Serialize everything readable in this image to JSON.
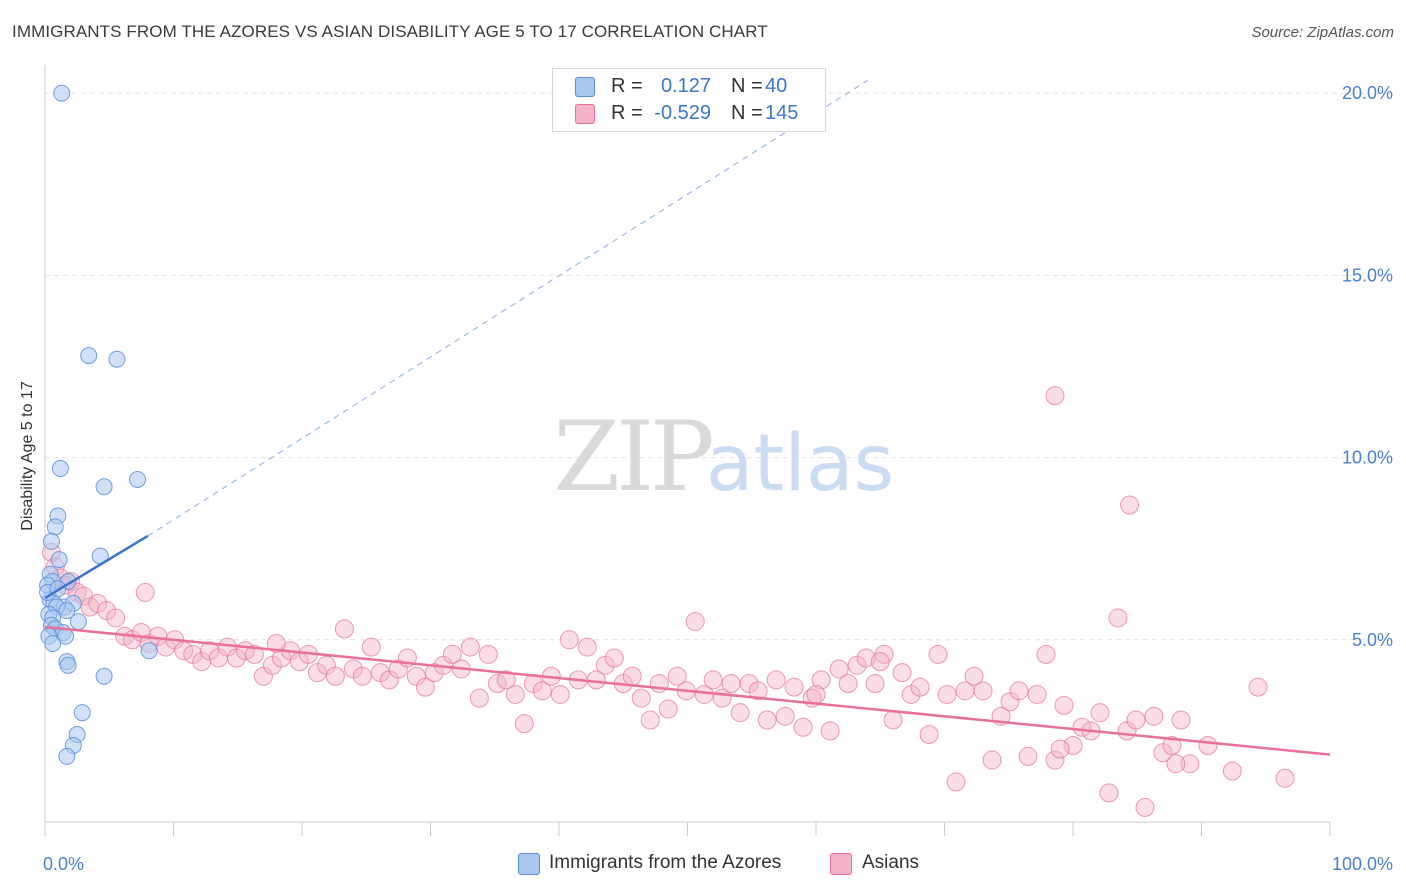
{
  "title": "IMMIGRANTS FROM THE AZORES VS ASIAN DISABILITY AGE 5 TO 17 CORRELATION CHART",
  "source": "Source: ZipAtlas.com",
  "watermark": {
    "zip": "ZIP",
    "atlas": "atlas"
  },
  "legend": {
    "series1": {
      "r_label": "R =",
      "r_value": "0.127",
      "n_label": "N =",
      "n_value": "40",
      "color": "#a9c8f0"
    },
    "series2": {
      "r_label": "R =",
      "r_value": "-0.529",
      "n_label": "N =",
      "n_value": "145",
      "color": "#f5b3c8"
    }
  },
  "bottom_legend": {
    "series1": "Immigrants from the Azores",
    "series2": "Asians"
  },
  "chart_data": {
    "type": "scatter",
    "title": "IMMIGRANTS FROM THE AZORES VS ASIAN DISABILITY AGE 5 TO 17 CORRELATION CHART",
    "xlabel": "",
    "ylabel": "Disability Age 5 to 17",
    "xlim": [
      0,
      100
    ],
    "ylim": [
      0,
      20.5
    ],
    "x_tick_labels": [
      "0.0%",
      "100.0%"
    ],
    "y_ticks": [
      5,
      10,
      15,
      20
    ],
    "y_tick_labels": [
      "5.0%",
      "10.0%",
      "15.0%",
      "20.0%"
    ],
    "grid": true,
    "series": [
      {
        "name": "Immigrants from the Azores",
        "color": "#5b8fd9",
        "fill": "#a9c8f0",
        "points": [
          [
            1.3,
            20.0
          ],
          [
            3.4,
            12.8
          ],
          [
            5.6,
            12.7
          ],
          [
            1.2,
            9.7
          ],
          [
            4.6,
            9.2
          ],
          [
            7.2,
            9.4
          ],
          [
            1.0,
            8.4
          ],
          [
            0.8,
            8.1
          ],
          [
            0.5,
            7.7
          ],
          [
            1.1,
            7.2
          ],
          [
            4.3,
            7.3
          ],
          [
            0.4,
            6.8
          ],
          [
            0.6,
            6.6
          ],
          [
            1.8,
            6.6
          ],
          [
            0.2,
            6.5
          ],
          [
            0.4,
            6.1
          ],
          [
            0.7,
            6.0
          ],
          [
            1.5,
            5.9
          ],
          [
            0.9,
            5.9
          ],
          [
            2.2,
            6.0
          ],
          [
            1.7,
            5.8
          ],
          [
            0.3,
            5.7
          ],
          [
            0.6,
            5.6
          ],
          [
            2.6,
            5.5
          ],
          [
            0.5,
            5.4
          ],
          [
            0.8,
            5.3
          ],
          [
            1.4,
            5.2
          ],
          [
            0.3,
            5.1
          ],
          [
            1.6,
            5.1
          ],
          [
            0.6,
            4.9
          ],
          [
            8.1,
            4.7
          ],
          [
            1.7,
            4.4
          ],
          [
            1.8,
            4.3
          ],
          [
            4.6,
            4.0
          ],
          [
            2.9,
            3.0
          ],
          [
            2.5,
            2.4
          ],
          [
            2.2,
            2.1
          ],
          [
            1.7,
            1.8
          ],
          [
            0.2,
            6.3
          ],
          [
            1.0,
            6.4
          ]
        ]
      },
      {
        "name": "Asians",
        "color": "#e8709a",
        "fill": "#f5b3c8",
        "points": [
          [
            0.5,
            7.4
          ],
          [
            0.8,
            7.0
          ],
          [
            1.2,
            6.7
          ],
          [
            1.6,
            6.5
          ],
          [
            2.0,
            6.6
          ],
          [
            2.5,
            6.3
          ],
          [
            3.0,
            6.2
          ],
          [
            3.5,
            5.9
          ],
          [
            4.1,
            6.0
          ],
          [
            4.8,
            5.8
          ],
          [
            5.5,
            5.6
          ],
          [
            7.8,
            6.3
          ],
          [
            6.2,
            5.1
          ],
          [
            6.8,
            5.0
          ],
          [
            7.5,
            5.2
          ],
          [
            8.1,
            4.9
          ],
          [
            8.8,
            5.1
          ],
          [
            9.4,
            4.8
          ],
          [
            10.1,
            5.0
          ],
          [
            10.8,
            4.7
          ],
          [
            11.5,
            4.6
          ],
          [
            12.2,
            4.4
          ],
          [
            12.8,
            4.7
          ],
          [
            13.5,
            4.5
          ],
          [
            14.2,
            4.8
          ],
          [
            14.9,
            4.5
          ],
          [
            15.6,
            4.7
          ],
          [
            16.3,
            4.6
          ],
          [
            17.0,
            4.0
          ],
          [
            17.7,
            4.3
          ],
          [
            18.4,
            4.5
          ],
          [
            19.1,
            4.7
          ],
          [
            19.8,
            4.4
          ],
          [
            20.5,
            4.6
          ],
          [
            21.2,
            4.1
          ],
          [
            21.9,
            4.3
          ],
          [
            22.6,
            4.0
          ],
          [
            23.3,
            5.3
          ],
          [
            24.0,
            4.2
          ],
          [
            24.7,
            4.0
          ],
          [
            25.4,
            4.8
          ],
          [
            26.1,
            4.1
          ],
          [
            26.8,
            3.9
          ],
          [
            27.5,
            4.2
          ],
          [
            28.2,
            4.5
          ],
          [
            28.9,
            4.0
          ],
          [
            29.6,
            3.7
          ],
          [
            30.3,
            4.1
          ],
          [
            31.0,
            4.3
          ],
          [
            31.7,
            4.6
          ],
          [
            32.4,
            4.2
          ],
          [
            33.1,
            4.8
          ],
          [
            33.8,
            3.4
          ],
          [
            34.5,
            4.6
          ],
          [
            35.2,
            3.8
          ],
          [
            35.9,
            3.9
          ],
          [
            36.6,
            3.5
          ],
          [
            37.3,
            2.7
          ],
          [
            38.0,
            3.8
          ],
          [
            38.7,
            3.6
          ],
          [
            39.4,
            4.0
          ],
          [
            40.1,
            3.5
          ],
          [
            40.8,
            5.0
          ],
          [
            41.5,
            3.9
          ],
          [
            42.2,
            4.8
          ],
          [
            42.9,
            3.9
          ],
          [
            43.6,
            4.3
          ],
          [
            44.3,
            4.5
          ],
          [
            45.0,
            3.8
          ],
          [
            45.7,
            4.0
          ],
          [
            46.4,
            3.4
          ],
          [
            47.1,
            2.8
          ],
          [
            47.8,
            3.8
          ],
          [
            48.5,
            3.1
          ],
          [
            49.2,
            4.0
          ],
          [
            49.9,
            3.6
          ],
          [
            50.6,
            5.5
          ],
          [
            51.3,
            3.5
          ],
          [
            52.0,
            3.9
          ],
          [
            52.7,
            3.4
          ],
          [
            53.4,
            3.8
          ],
          [
            54.1,
            3.0
          ],
          [
            54.8,
            3.8
          ],
          [
            55.5,
            3.6
          ],
          [
            56.2,
            2.8
          ],
          [
            56.9,
            3.9
          ],
          [
            57.6,
            2.9
          ],
          [
            58.3,
            3.7
          ],
          [
            59.0,
            2.6
          ],
          [
            59.7,
            3.4
          ],
          [
            60.4,
            3.9
          ],
          [
            61.1,
            2.5
          ],
          [
            61.8,
            4.2
          ],
          [
            62.5,
            3.8
          ],
          [
            63.2,
            4.3
          ],
          [
            63.9,
            4.5
          ],
          [
            64.6,
            3.8
          ],
          [
            65.3,
            4.6
          ],
          [
            66.0,
            2.8
          ],
          [
            66.7,
            4.1
          ],
          [
            67.4,
            3.5
          ],
          [
            68.1,
            3.7
          ],
          [
            68.8,
            2.4
          ],
          [
            69.5,
            4.6
          ],
          [
            70.2,
            3.5
          ],
          [
            70.9,
            1.1
          ],
          [
            71.6,
            3.6
          ],
          [
            72.3,
            4.0
          ],
          [
            73.0,
            3.6
          ],
          [
            73.7,
            1.7
          ],
          [
            74.4,
            2.9
          ],
          [
            75.1,
            3.3
          ],
          [
            75.8,
            3.6
          ],
          [
            76.5,
            1.8
          ],
          [
            77.2,
            3.5
          ],
          [
            77.9,
            4.6
          ],
          [
            78.6,
            1.7
          ],
          [
            79.3,
            3.2
          ],
          [
            80.0,
            2.1
          ],
          [
            80.7,
            2.6
          ],
          [
            81.4,
            2.5
          ],
          [
            82.1,
            3.0
          ],
          [
            82.8,
            0.8
          ],
          [
            83.5,
            5.6
          ],
          [
            84.2,
            2.5
          ],
          [
            84.9,
            2.8
          ],
          [
            85.6,
            0.4
          ],
          [
            86.3,
            2.9
          ],
          [
            87.0,
            1.9
          ],
          [
            87.7,
            2.1
          ],
          [
            88.4,
            2.8
          ],
          [
            89.1,
            1.6
          ],
          [
            90.5,
            2.1
          ],
          [
            92.4,
            1.4
          ],
          [
            94.4,
            3.7
          ],
          [
            96.5,
            1.2
          ],
          [
            88.0,
            1.6
          ],
          [
            65.0,
            4.4
          ],
          [
            79.0,
            2.0
          ],
          [
            78.6,
            11.7
          ],
          [
            84.4,
            8.7
          ],
          [
            18.0,
            4.9
          ],
          [
            60.0,
            3.5
          ]
        ]
      }
    ],
    "trend_lines": [
      {
        "series": "Immigrants from the Azores",
        "solid": [
          [
            0,
            6.15
          ],
          [
            8,
            7.85
          ]
        ],
        "dashed": [
          [
            8,
            7.85
          ],
          [
            64,
            20.35
          ]
        ]
      },
      {
        "series": "Asians",
        "solid": [
          [
            0,
            5.35
          ],
          [
            100,
            1.85
          ]
        ]
      }
    ]
  }
}
